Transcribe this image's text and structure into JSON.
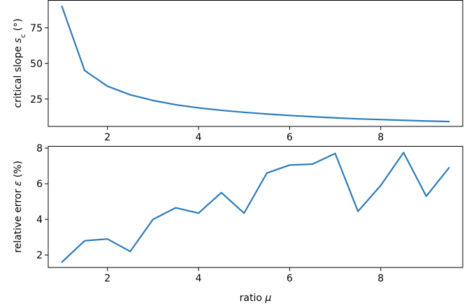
{
  "chart_data": [
    {
      "type": "line",
      "xlabel": "",
      "ylabel": "critical slope s_c (°)",
      "ylabel_parts": [
        "critical slope ",
        "s",
        "c",
        " (°)"
      ],
      "xlim": [
        0.7,
        9.8
      ],
      "ylim": [
        5.8,
        94.5
      ],
      "xticks": [
        2,
        4,
        6,
        8
      ],
      "yticks": [
        25,
        50,
        75
      ],
      "grid": false,
      "color": "#2b7bba",
      "series": [
        {
          "x": [
            1,
            1.5,
            2,
            2.5,
            3,
            3.5,
            4,
            4.5,
            5,
            5.5,
            6,
            6.5,
            7,
            7.5,
            8,
            8.5,
            9,
            9.5
          ],
          "y": [
            90,
            45,
            34,
            28,
            24,
            21,
            18.8,
            17.1,
            15.7,
            14.5,
            13.5,
            12.6,
            11.8,
            11.1,
            10.6,
            10.1,
            9.6,
            9.2
          ]
        }
      ]
    },
    {
      "type": "line",
      "xlabel": "ratio μ",
      "xlabel_parts": [
        "ratio ",
        "μ"
      ],
      "ylabel": "relative error ε (%)",
      "ylabel_parts": [
        "relative error ",
        "ε",
        " (%)"
      ],
      "xlim": [
        0.7,
        9.8
      ],
      "ylim": [
        1.3,
        8.12
      ],
      "xticks": [
        2,
        4,
        6,
        8
      ],
      "yticks": [
        2,
        4,
        6,
        8
      ],
      "grid": false,
      "color": "#2b7bba",
      "series": [
        {
          "x": [
            1,
            1.5,
            2,
            2.5,
            3,
            3.5,
            4,
            4.5,
            5,
            5.5,
            6,
            6.5,
            7,
            7.5,
            8,
            8.5,
            9,
            9.5
          ],
          "y": [
            1.6,
            2.8,
            2.9,
            2.2,
            4.0,
            4.65,
            4.35,
            5.5,
            4.35,
            6.6,
            7.05,
            7.1,
            7.7,
            4.45,
            5.9,
            7.75,
            5.3,
            6.9
          ]
        }
      ]
    }
  ]
}
